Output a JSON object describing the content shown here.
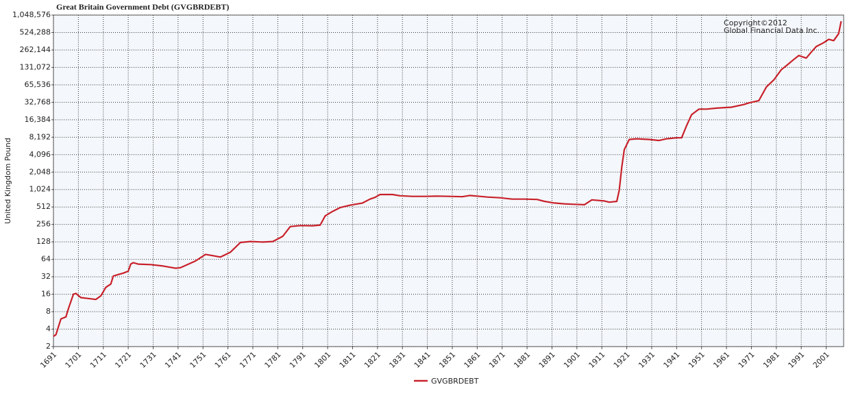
{
  "chart_data": {
    "type": "line",
    "title": "Great Britain Government Debt (GVGBRDEBT)",
    "annotation": "Copyright©2012\nGlobal Financial Data Inc.",
    "ylabel": "United Kingdom Pound",
    "yscale": "log",
    "grid": true,
    "legend": "bottom",
    "x": [
      1691,
      1692,
      1694,
      1696,
      1697,
      1699,
      1700,
      1702,
      1705,
      1708,
      1710,
      1712,
      1714,
      1715,
      1717,
      1719,
      1721,
      1722,
      1723,
      1725,
      1730,
      1735,
      1740,
      1742,
      1748,
      1752,
      1755,
      1758,
      1762,
      1766,
      1770,
      1775,
      1779,
      1783,
      1786,
      1790,
      1795,
      1798,
      1800,
      1803,
      1806,
      1810,
      1815,
      1818,
      1820,
      1822,
      1827,
      1830,
      1835,
      1840,
      1845,
      1850,
      1855,
      1858,
      1862,
      1865,
      1870,
      1875,
      1880,
      1885,
      1888,
      1892,
      1896,
      1900,
      1904,
      1907,
      1912,
      1914,
      1917,
      1918,
      1919,
      1920,
      1922,
      1925,
      1930,
      1934,
      1937,
      1941,
      1943,
      1945,
      1947,
      1950,
      1953,
      1957,
      1963,
      1968,
      1970,
      1974,
      1977,
      1980,
      1983,
      1985,
      1988,
      1990,
      1993,
      1995,
      1997,
      2000,
      2002,
      2004,
      2006,
      2007
    ],
    "series": [
      {
        "name": "GVGBRDEBT",
        "color": "#c8202a",
        "values": [
          3,
          3.2,
          6,
          6.5,
          9,
          16,
          16.5,
          14,
          13.5,
          13,
          15,
          21,
          24,
          33,
          35,
          37,
          40,
          53,
          56,
          53,
          52,
          49,
          45,
          46,
          60,
          78,
          74,
          70,
          85,
          125,
          130,
          127,
          130,
          160,
          235,
          245,
          243,
          250,
          360,
          430,
          500,
          550,
          600,
          700,
          750,
          840,
          840,
          800,
          780,
          780,
          790,
          780,
          770,
          810,
          780,
          760,
          740,
          700,
          700,
          690,
          640,
          600,
          580,
          570,
          560,
          680,
          650,
          620,
          640,
          1000,
          2500,
          5000,
          7500,
          7700,
          7500,
          7200,
          7700,
          8000,
          8000,
          13000,
          20000,
          25000,
          25000,
          26000,
          27000,
          30000,
          32000,
          35000,
          60000,
          80000,
          120000,
          140000,
          180000,
          210000,
          190000,
          240000,
          300000,
          350000,
          400000,
          380000,
          500000,
          820000
        ]
      }
    ],
    "xlim": [
      1691,
      2008
    ],
    "xticks": [
      1691,
      1701,
      1711,
      1721,
      1731,
      1741,
      1751,
      1761,
      1771,
      1781,
      1791,
      1801,
      1811,
      1821,
      1831,
      1841,
      1851,
      1861,
      1871,
      1881,
      1891,
      1901,
      1911,
      1921,
      1931,
      1941,
      1951,
      1961,
      1971,
      1981,
      1991,
      2001
    ],
    "ylim": [
      2,
      1048576
    ],
    "yticks": [
      2,
      4,
      8,
      16,
      32,
      64,
      128,
      256,
      512,
      {
        "value": 1024,
        "label": "1,024"
      },
      {
        "value": 2048,
        "label": "2,048"
      },
      {
        "value": 4096,
        "label": "4,096"
      },
      {
        "value": 8192,
        "label": "8,192"
      },
      {
        "value": 16384,
        "label": "16,384"
      },
      {
        "value": 32768,
        "label": "32,768"
      },
      {
        "value": 65536,
        "label": "65,536"
      },
      {
        "value": 131072,
        "label": "131,072"
      },
      {
        "value": 262144,
        "label": "262,144"
      },
      {
        "value": 524288,
        "label": "524,288"
      },
      {
        "value": 1048576,
        "label": "1,048,576"
      }
    ]
  }
}
